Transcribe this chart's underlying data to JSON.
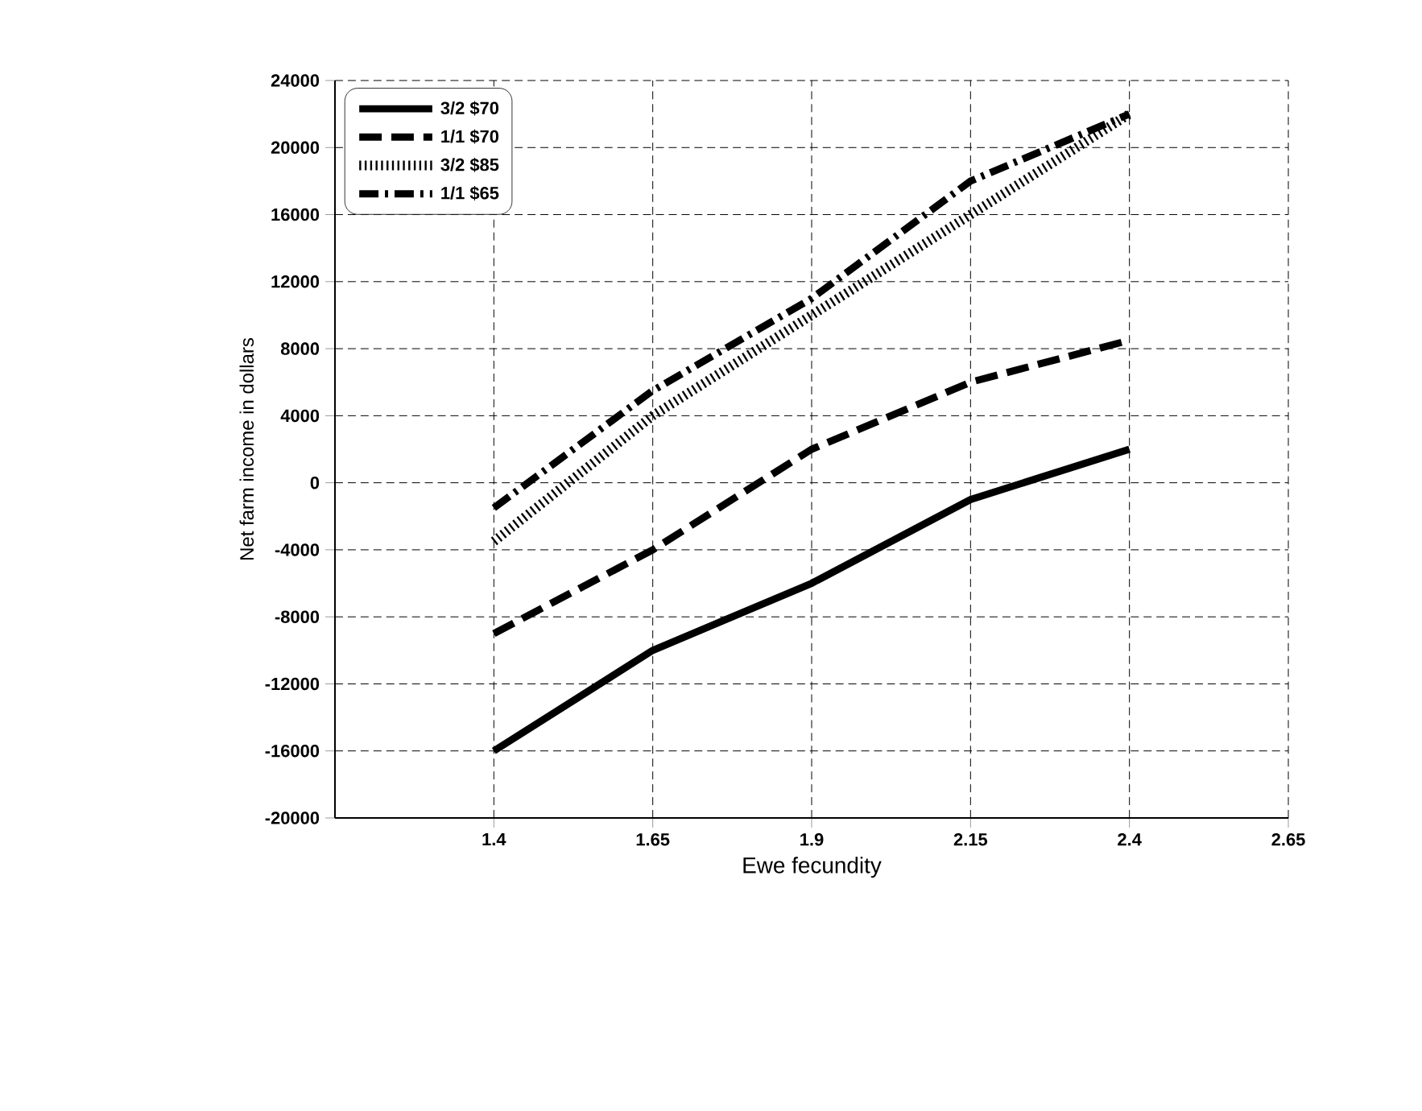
{
  "chart_data": {
    "type": "line",
    "xlabel": "Ewe fecundity",
    "ylabel": "Net farm income in dollars",
    "x": [
      1.4,
      1.65,
      1.9,
      2.15,
      2.4
    ],
    "series": [
      {
        "name": "3/2 $70",
        "color": "#000000",
        "line_style": "solid",
        "values": [
          -16000,
          -10000,
          -6000,
          -1000,
          2000
        ]
      },
      {
        "name": "1/1  $70",
        "color": "#000000",
        "line_style": "dashed",
        "values": [
          -9000,
          -4000,
          2000,
          6000,
          8500
        ]
      },
      {
        "name": "3/2 $85",
        "color": "#000000",
        "line_style": "dotted",
        "values": [
          -3500,
          4000,
          10000,
          16000,
          22000
        ]
      },
      {
        "name": "1/1 $65",
        "color": "#000000",
        "line_style": "dashdot",
        "values": [
          -1500,
          5500,
          11000,
          18000,
          22000
        ]
      }
    ],
    "xlim": [
      1.15,
      2.65
    ],
    "xticks": [
      1.4,
      1.65,
      1.9,
      2.15,
      2.4,
      2.65
    ],
    "ylim": [
      -20000,
      24000
    ],
    "yticks": [
      -20000,
      -16000,
      -12000,
      -8000,
      -4000,
      0,
      4000,
      8000,
      12000,
      16000,
      20000,
      24000
    ],
    "grid": true,
    "legend": "top left",
    "marker": "none"
  }
}
